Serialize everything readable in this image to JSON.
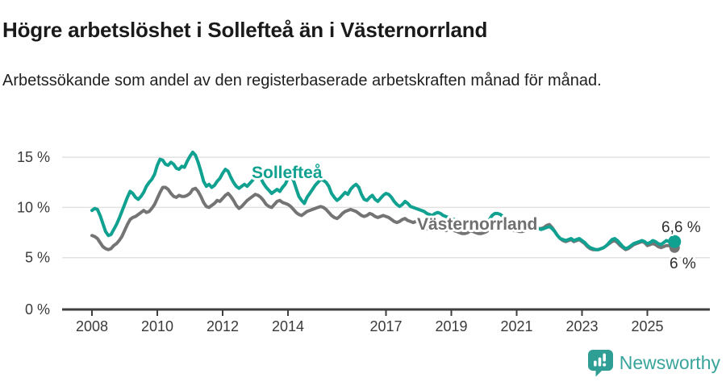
{
  "header": {
    "title": "Högre arbetslöshet i Sollefteå än i Västernorrland",
    "subtitle": "Arbetssökande som andel av den registerbaserade arbetskraften månad för månad."
  },
  "chart_data": {
    "type": "line",
    "unit": "%",
    "frequency": "monthly",
    "x_start_year": 2008,
    "x_start_month": 1,
    "x_end_year": 2025,
    "x_end_month": 11,
    "ylim": [
      0,
      16.5
    ],
    "grid": "horizontal",
    "legend_position": "inline-labels",
    "yticks": [
      {
        "value": 0,
        "label": "0 %"
      },
      {
        "value": 5,
        "label": "5 %"
      },
      {
        "value": 10,
        "label": "10 %"
      },
      {
        "value": 15,
        "label": "15 %"
      }
    ],
    "xticks": [
      {
        "value": 2008,
        "label": "2008"
      },
      {
        "value": 2010,
        "label": "2010"
      },
      {
        "value": 2012,
        "label": "2012"
      },
      {
        "value": 2014,
        "label": "2014"
      },
      {
        "value": 2017,
        "label": "2017"
      },
      {
        "value": 2019,
        "label": "2019"
      },
      {
        "value": 2021,
        "label": "2021"
      },
      {
        "value": 2023,
        "label": "2023"
      },
      {
        "value": 2025,
        "label": "2025"
      }
    ],
    "series": [
      {
        "name": "Sollefteå",
        "color": "#10a191",
        "end_value": 6.6,
        "end_label": "6,6 %",
        "values": [
          9.7,
          9.9,
          9.8,
          9.2,
          8.4,
          7.6,
          7.2,
          7.3,
          7.8,
          8.3,
          8.9,
          9.6,
          10.3,
          11.0,
          11.6,
          11.4,
          11.0,
          10.8,
          11.1,
          11.5,
          12.1,
          12.5,
          12.8,
          13.3,
          14.2,
          14.8,
          14.7,
          14.3,
          14.2,
          14.5,
          14.3,
          13.9,
          13.8,
          14.1,
          14.0,
          14.6,
          15.1,
          15.5,
          15.2,
          14.5,
          13.6,
          12.6,
          12.1,
          12.3,
          12.0,
          12.2,
          12.6,
          12.9,
          13.4,
          13.8,
          13.6,
          13.0,
          12.5,
          12.1,
          11.9,
          12.1,
          12.3,
          12.1,
          12.4,
          12.7,
          13.0,
          13.2,
          12.9,
          12.4,
          12.0,
          11.7,
          11.4,
          11.6,
          11.8,
          11.6,
          12.0,
          12.3,
          12.9,
          13.1,
          12.7,
          11.9,
          11.1,
          10.7,
          10.4,
          11.0,
          11.4,
          11.8,
          12.2,
          12.5,
          12.8,
          12.7,
          12.5,
          12.1,
          11.4,
          11.0,
          10.7,
          10.9,
          11.2,
          11.5,
          11.3,
          11.8,
          12.1,
          12.3,
          12.0,
          11.3,
          10.8,
          10.7,
          11.0,
          11.2,
          10.8,
          10.6,
          10.9,
          11.2,
          11.4,
          11.3,
          11.0,
          10.6,
          10.3,
          10.1,
          10.3,
          10.6,
          10.4,
          10.1,
          10.0,
          9.9,
          9.8,
          9.7,
          9.6,
          9.4,
          9.3,
          9.2,
          9.4,
          9.5,
          9.4,
          9.2,
          9.1,
          9.0,
          8.9,
          8.8,
          8.7,
          8.6,
          8.5,
          8.4,
          8.6,
          8.8,
          8.7,
          8.5,
          8.4,
          8.3,
          8.4,
          8.5,
          8.8,
          9.2,
          9.4,
          9.4,
          9.3,
          9.1,
          8.9,
          8.7,
          8.5,
          8.4,
          8.3,
          8.2,
          8.1,
          8.0,
          7.9,
          7.8,
          7.9,
          8.0,
          7.9,
          7.8,
          7.9,
          8.0,
          8.1,
          7.9,
          7.6,
          7.2,
          6.9,
          6.8,
          6.7,
          6.8,
          6.9,
          6.7,
          6.8,
          6.9,
          6.7,
          6.5,
          6.2,
          6.0,
          5.9,
          5.8,
          5.8,
          5.9,
          6.0,
          6.2,
          6.5,
          6.8,
          6.9,
          6.7,
          6.4,
          6.1,
          5.9,
          6.0,
          6.2,
          6.4,
          6.5,
          6.6,
          6.7,
          6.6,
          6.4,
          6.5,
          6.7,
          6.6,
          6.4,
          6.3,
          6.5,
          6.7,
          6.6,
          6.5,
          6.6
        ]
      },
      {
        "name": "Västernorrland",
        "color": "#747474",
        "end_value": 6.0,
        "end_label": "6 %",
        "values": [
          7.2,
          7.1,
          6.9,
          6.5,
          6.1,
          5.9,
          5.8,
          5.9,
          6.2,
          6.4,
          6.7,
          7.1,
          7.7,
          8.3,
          8.8,
          9.0,
          9.1,
          9.3,
          9.5,
          9.7,
          9.5,
          9.6,
          9.9,
          10.3,
          10.9,
          11.5,
          12.0,
          12.0,
          11.8,
          11.4,
          11.1,
          11.0,
          11.2,
          11.1,
          11.1,
          11.2,
          11.4,
          11.8,
          11.9,
          11.6,
          11.1,
          10.5,
          10.1,
          10.0,
          10.2,
          10.4,
          10.7,
          10.6,
          10.9,
          11.2,
          11.4,
          11.1,
          10.7,
          10.2,
          9.9,
          10.1,
          10.4,
          10.7,
          10.9,
          11.1,
          11.3,
          11.2,
          11.0,
          10.7,
          10.3,
          10.1,
          10.0,
          10.3,
          10.6,
          10.7,
          10.5,
          10.4,
          10.3,
          10.1,
          9.8,
          9.5,
          9.3,
          9.2,
          9.4,
          9.6,
          9.7,
          9.8,
          9.9,
          10.0,
          10.1,
          10.0,
          9.8,
          9.5,
          9.2,
          9.0,
          8.9,
          9.1,
          9.4,
          9.6,
          9.7,
          9.8,
          9.7,
          9.6,
          9.4,
          9.2,
          9.1,
          9.2,
          9.4,
          9.3,
          9.1,
          9.0,
          9.1,
          9.2,
          9.1,
          9.0,
          8.8,
          8.6,
          8.5,
          8.6,
          8.8,
          8.9,
          8.7,
          8.6,
          8.5,
          8.6,
          8.5,
          8.3,
          8.1,
          7.9,
          7.8,
          7.7,
          7.9,
          8.1,
          8.0,
          7.8,
          7.7,
          7.8,
          7.8,
          7.7,
          7.6,
          7.5,
          7.4,
          7.4,
          7.5,
          7.7,
          7.6,
          7.5,
          7.4,
          7.4,
          7.5,
          7.6,
          7.9,
          8.4,
          8.6,
          8.6,
          8.5,
          8.3,
          8.1,
          7.9,
          7.8,
          7.7,
          7.7,
          7.6,
          7.6,
          7.7,
          7.8,
          7.8,
          7.9,
          8.0,
          7.9,
          7.9,
          8.0,
          8.2,
          8.3,
          8.0,
          7.6,
          7.2,
          6.9,
          6.7,
          6.6,
          6.7,
          6.8,
          6.6,
          6.7,
          6.8,
          6.6,
          6.4,
          6.1,
          5.9,
          5.8,
          5.8,
          5.8,
          5.9,
          6.0,
          6.2,
          6.4,
          6.6,
          6.7,
          6.5,
          6.2,
          6.0,
          5.8,
          5.9,
          6.1,
          6.3,
          6.4,
          6.5,
          6.6,
          6.5,
          6.2,
          6.3,
          6.4,
          6.3,
          6.1,
          6.0,
          6.1,
          6.2,
          6.2,
          6.0,
          6.0
        ]
      }
    ]
  },
  "footer": {
    "brand": "Newsworthy"
  }
}
